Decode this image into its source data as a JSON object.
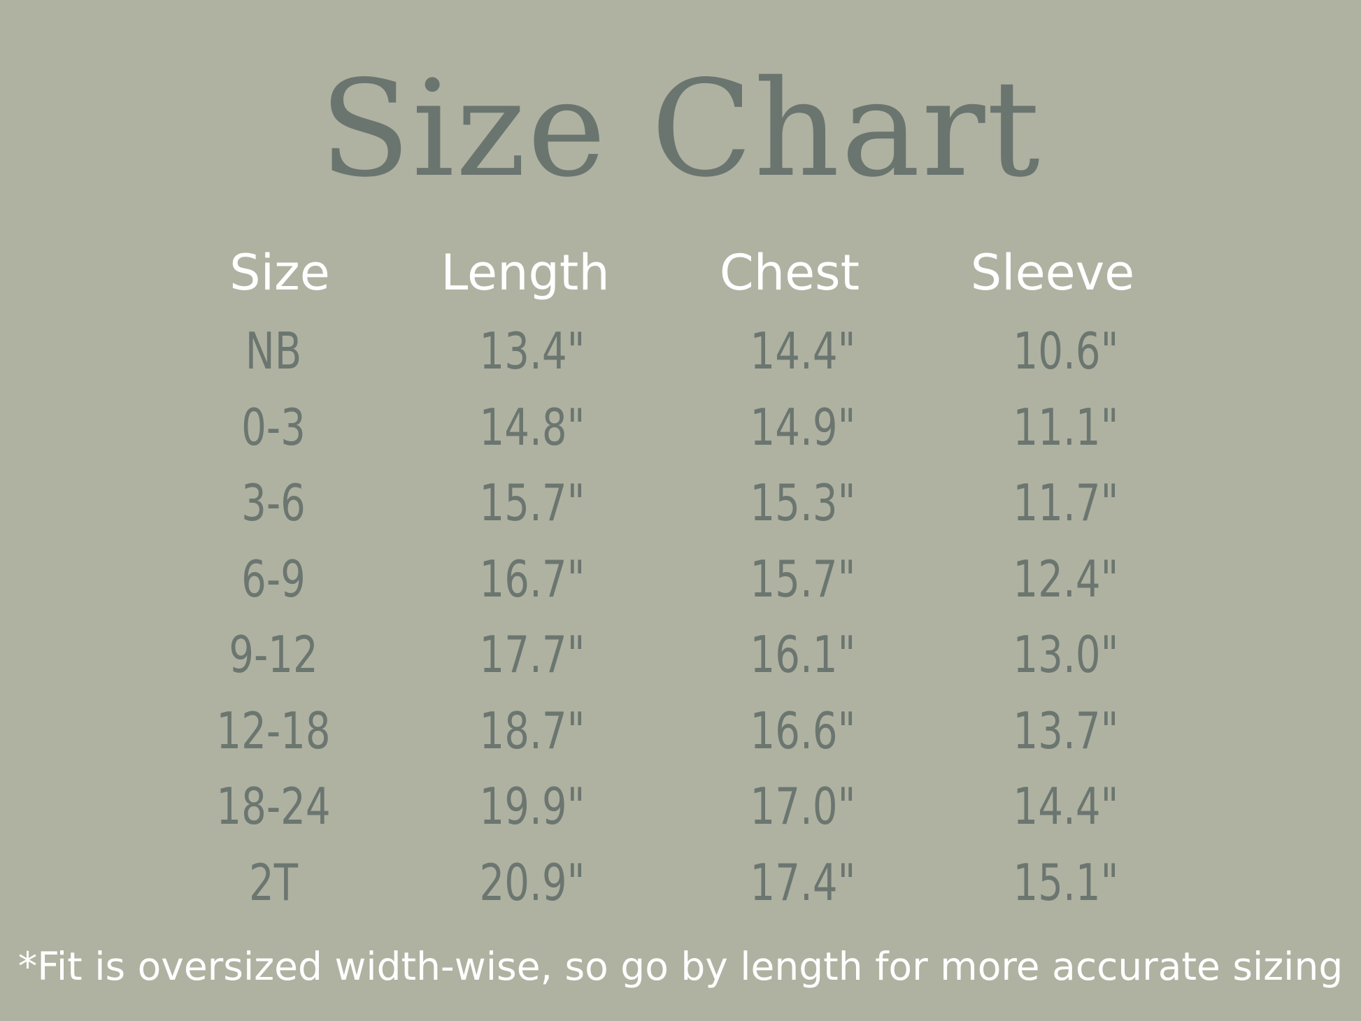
{
  "title": "Size Chart",
  "colors": {
    "background": "#afb2a1",
    "title": "#6b756f",
    "header": "#ffffff",
    "values": "#6c7670"
  },
  "chart_data": {
    "type": "table",
    "title": "Size Chart",
    "columns": [
      "Size",
      "Length",
      "Chest",
      "Sleeve"
    ],
    "rows": [
      [
        "NB",
        "13.4\"",
        "14.4\"",
        "10.6\""
      ],
      [
        "0-3",
        "14.8\"",
        "14.9\"",
        "11.1\""
      ],
      [
        "3-6",
        "15.7\"",
        "15.3\"",
        "11.7\""
      ],
      [
        "6-9",
        "16.7\"",
        "15.7\"",
        "12.4\""
      ],
      [
        "9-12",
        "17.7\"",
        "16.1\"",
        "13.0\""
      ],
      [
        "12-18",
        "18.7\"",
        "16.6\"",
        "13.7\""
      ],
      [
        "18-24",
        "19.9\"",
        "17.0\"",
        "14.4\""
      ],
      [
        "2T",
        "20.9\"",
        "17.4\"",
        "15.1\""
      ]
    ]
  },
  "footnote": "*Fit is oversized width-wise, so go by length for more accurate sizing"
}
